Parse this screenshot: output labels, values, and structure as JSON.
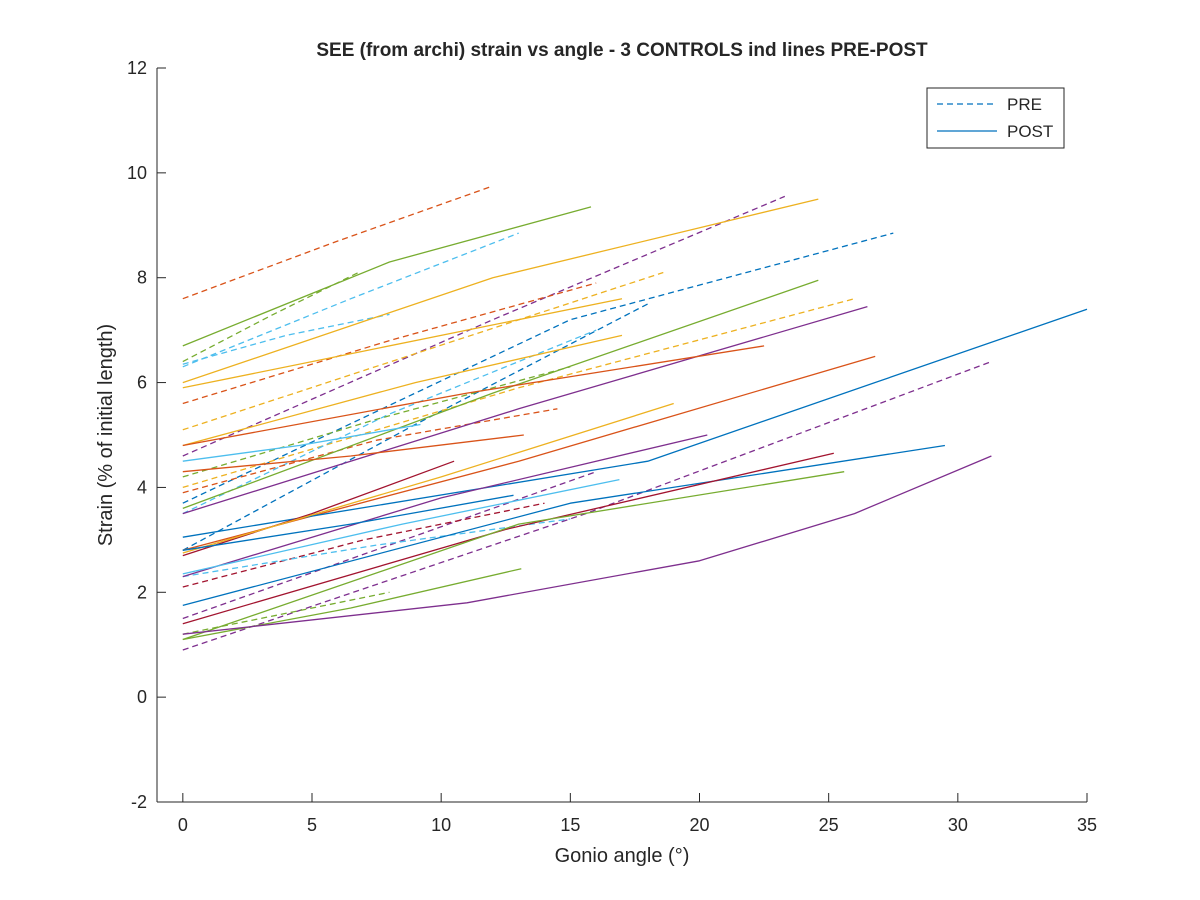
{
  "chart_data": {
    "type": "line",
    "title": "SEE (from archi) strain vs angle - 3 CONTROLS ind lines PRE-POST",
    "xlabel": "Gonio angle (°)",
    "ylabel": "Strain (% of initial length)",
    "xlim": [
      -1,
      35
    ],
    "ylim": [
      -2,
      12
    ],
    "xticks": [
      0,
      5,
      10,
      15,
      20,
      25,
      30,
      35
    ],
    "yticks": [
      -2,
      0,
      2,
      4,
      6,
      8,
      10,
      12
    ],
    "grid": false,
    "legend": {
      "placement": "top-right",
      "entries": [
        {
          "label": "PRE",
          "style": "dashed",
          "color": "#0072BD"
        },
        {
          "label": "POST",
          "style": "solid",
          "color": "#0072BD"
        }
      ]
    },
    "series": [
      {
        "style": "dashed",
        "color": "#D95319",
        "x": [
          0,
          6,
          12
        ],
        "y": [
          7.6,
          8.7,
          9.75
        ]
      },
      {
        "style": "dashed",
        "color": "#77AC30",
        "x": [
          0,
          3.5,
          6.8
        ],
        "y": [
          6.4,
          7.3,
          8.1
        ]
      },
      {
        "style": "dashed",
        "color": "#4DBEEE",
        "x": [
          0,
          6.5,
          13
        ],
        "y": [
          6.3,
          7.6,
          8.85
        ]
      },
      {
        "style": "dashed",
        "color": "#4DBEEE",
        "x": [
          0,
          4,
          8
        ],
        "y": [
          6.35,
          6.9,
          7.3
        ]
      },
      {
        "style": "dashed",
        "color": "#7E2F8E",
        "x": [
          0,
          12,
          23.3
        ],
        "y": [
          4.6,
          7.2,
          9.55
        ]
      },
      {
        "style": "dashed",
        "color": "#D95319",
        "x": [
          0,
          8,
          16
        ],
        "y": [
          5.6,
          6.8,
          7.9
        ]
      },
      {
        "style": "dashed",
        "color": "#0072BD",
        "x": [
          0,
          15,
          27.5
        ],
        "y": [
          3.7,
          7.2,
          8.85
        ]
      },
      {
        "style": "dashed",
        "color": "#0072BD",
        "x": [
          0,
          9,
          18
        ],
        "y": [
          2.8,
          5.2,
          7.5
        ]
      },
      {
        "style": "dashed",
        "color": "#EDB120",
        "x": [
          0,
          9.3,
          18.6
        ],
        "y": [
          5.1,
          6.6,
          8.1
        ]
      },
      {
        "style": "dashed",
        "color": "#EDB120",
        "x": [
          0,
          13,
          26
        ],
        "y": [
          4.0,
          5.9,
          7.6
        ]
      },
      {
        "style": "dashed",
        "color": "#4DBEEE",
        "x": [
          0,
          8,
          16
        ],
        "y": [
          3.5,
          5.4,
          7.0
        ]
      },
      {
        "style": "dashed",
        "color": "#77AC30",
        "x": [
          0,
          7.5,
          15
        ],
        "y": [
          4.2,
          5.3,
          6.3
        ]
      },
      {
        "style": "dashed",
        "color": "#D95319",
        "x": [
          0,
          7.5,
          14.5
        ],
        "y": [
          3.9,
          4.9,
          5.5
        ]
      },
      {
        "style": "dashed",
        "color": "#7E2F8E",
        "x": [
          0,
          15.6,
          31.3
        ],
        "y": [
          0.9,
          3.5,
          6.4
        ]
      },
      {
        "style": "dashed",
        "color": "#7E2F8E",
        "x": [
          0,
          8,
          16
        ],
        "y": [
          1.5,
          2.9,
          4.3
        ]
      },
      {
        "style": "dashed",
        "color": "#A2142F",
        "x": [
          0,
          7,
          14
        ],
        "y": [
          2.1,
          3.0,
          3.7
        ]
      },
      {
        "style": "dashed",
        "color": "#77AC30",
        "x": [
          0,
          4,
          8
        ],
        "y": [
          1.2,
          1.6,
          2.0
        ]
      },
      {
        "style": "dashed",
        "color": "#4DBEEE",
        "x": [
          0,
          7.5,
          15
        ],
        "y": [
          2.3,
          2.9,
          3.4
        ]
      },
      {
        "style": "solid",
        "color": "#77AC30",
        "x": [
          0,
          8,
          15.8
        ],
        "y": [
          6.7,
          8.3,
          9.35
        ]
      },
      {
        "style": "solid",
        "color": "#EDB120",
        "x": [
          0,
          12,
          24.6
        ],
        "y": [
          6.0,
          8.0,
          9.5
        ]
      },
      {
        "style": "solid",
        "color": "#EDB120",
        "x": [
          0,
          7,
          17
        ],
        "y": [
          5.9,
          6.6,
          7.6
        ]
      },
      {
        "style": "solid",
        "color": "#EDB120",
        "x": [
          0,
          9,
          17
        ],
        "y": [
          4.8,
          6.0,
          6.9
        ]
      },
      {
        "style": "solid",
        "color": "#77AC30",
        "x": [
          0,
          12,
          24.6
        ],
        "y": [
          3.6,
          5.8,
          7.95
        ]
      },
      {
        "style": "solid",
        "color": "#7E2F8E",
        "x": [
          0,
          13,
          26.5
        ],
        "y": [
          3.5,
          5.5,
          7.45
        ]
      },
      {
        "style": "solid",
        "color": "#D95319",
        "x": [
          0,
          11,
          22.5
        ],
        "y": [
          4.8,
          5.8,
          6.7
        ]
      },
      {
        "style": "solid",
        "color": "#D95319",
        "x": [
          0,
          13,
          26.8
        ],
        "y": [
          2.8,
          4.5,
          6.5
        ]
      },
      {
        "style": "solid",
        "color": "#0072BD",
        "x": [
          0,
          18,
          35
        ],
        "y": [
          3.05,
          4.5,
          7.4
        ]
      },
      {
        "style": "solid",
        "color": "#4DBEEE",
        "x": [
          0,
          4.5,
          9.2
        ],
        "y": [
          4.5,
          4.8,
          5.2
        ]
      },
      {
        "style": "solid",
        "color": "#D95319",
        "x": [
          0,
          6.5,
          13.2
        ],
        "y": [
          4.3,
          4.6,
          5.0
        ]
      },
      {
        "style": "solid",
        "color": "#7E2F8E",
        "x": [
          0,
          10,
          20.3
        ],
        "y": [
          2.3,
          3.8,
          5.0
        ]
      },
      {
        "style": "solid",
        "color": "#A2142F",
        "x": [
          0,
          5,
          10.5
        ],
        "y": [
          2.7,
          3.5,
          4.5
        ]
      },
      {
        "style": "solid",
        "color": "#EDB120",
        "x": [
          0,
          10,
          19
        ],
        "y": [
          2.75,
          4.2,
          5.6
        ]
      },
      {
        "style": "solid",
        "color": "#0072BD",
        "x": [
          0,
          6.5,
          12.8
        ],
        "y": [
          2.8,
          3.3,
          3.85
        ]
      },
      {
        "style": "solid",
        "color": "#4DBEEE",
        "x": [
          0,
          8.5,
          16.9
        ],
        "y": [
          2.35,
          3.3,
          4.15
        ]
      },
      {
        "style": "solid",
        "color": "#0072BD",
        "x": [
          0,
          15,
          29.5
        ],
        "y": [
          1.75,
          3.7,
          4.8
        ]
      },
      {
        "style": "solid",
        "color": "#A2142F",
        "x": [
          0,
          12.5,
          25.2
        ],
        "y": [
          1.4,
          3.2,
          4.65
        ]
      },
      {
        "style": "solid",
        "color": "#77AC30",
        "x": [
          0,
          13,
          25.6
        ],
        "y": [
          1.1,
          3.3,
          4.3
        ]
      },
      {
        "style": "solid",
        "color": "#77AC30",
        "x": [
          0,
          6.5,
          13.1
        ],
        "y": [
          1.1,
          1.7,
          2.45
        ]
      },
      {
        "style": "solid",
        "color": "#7E2F8E",
        "x": [
          0,
          11,
          20,
          26,
          31.3
        ],
        "y": [
          1.2,
          1.8,
          2.6,
          3.5,
          4.6
        ]
      }
    ]
  }
}
